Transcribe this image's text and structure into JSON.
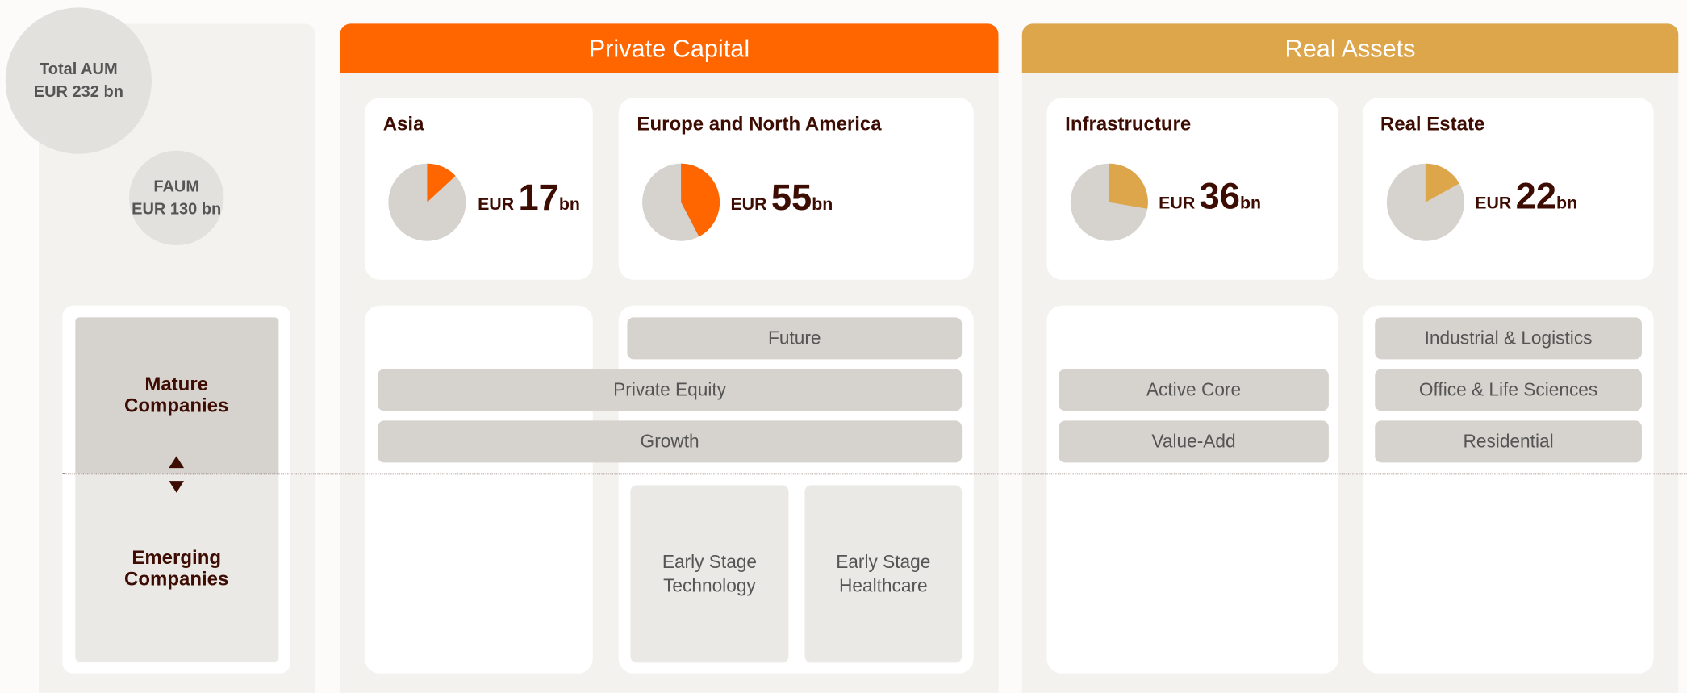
{
  "summary": {
    "total_aum": {
      "label": "Total AUM",
      "currency": "EUR",
      "value": 232,
      "unit": "bn"
    },
    "faum": {
      "label": "FAUM",
      "currency": "EUR",
      "value": 130,
      "unit": "bn"
    }
  },
  "stages": {
    "mature": "Mature Companies",
    "emerging": "Emerging Companies"
  },
  "segments": [
    {
      "title": "Private Capital",
      "color": "#ff6600",
      "regions": [
        {
          "name": "Asia",
          "currency": "EUR",
          "value": 17,
          "unit": "bn"
        },
        {
          "name": "Europe and North America",
          "currency": "EUR",
          "value": 55,
          "unit": "bn"
        }
      ],
      "strategies": [
        "Future",
        "Private Equity",
        "Growth",
        "Early Stage Technology",
        "Early Stage Healthcare"
      ]
    },
    {
      "title": "Real Assets",
      "color": "#dea64b",
      "regions": [
        {
          "name": "Infrastructure",
          "currency": "EUR",
          "value": 36,
          "unit": "bn"
        },
        {
          "name": "Real Estate",
          "currency": "EUR",
          "value": 22,
          "unit": "bn"
        }
      ],
      "strategies": [
        "Active Core",
        "Value-Add",
        "Industrial & Logistics",
        "Office & Life Sciences",
        "Residential"
      ]
    }
  ]
}
